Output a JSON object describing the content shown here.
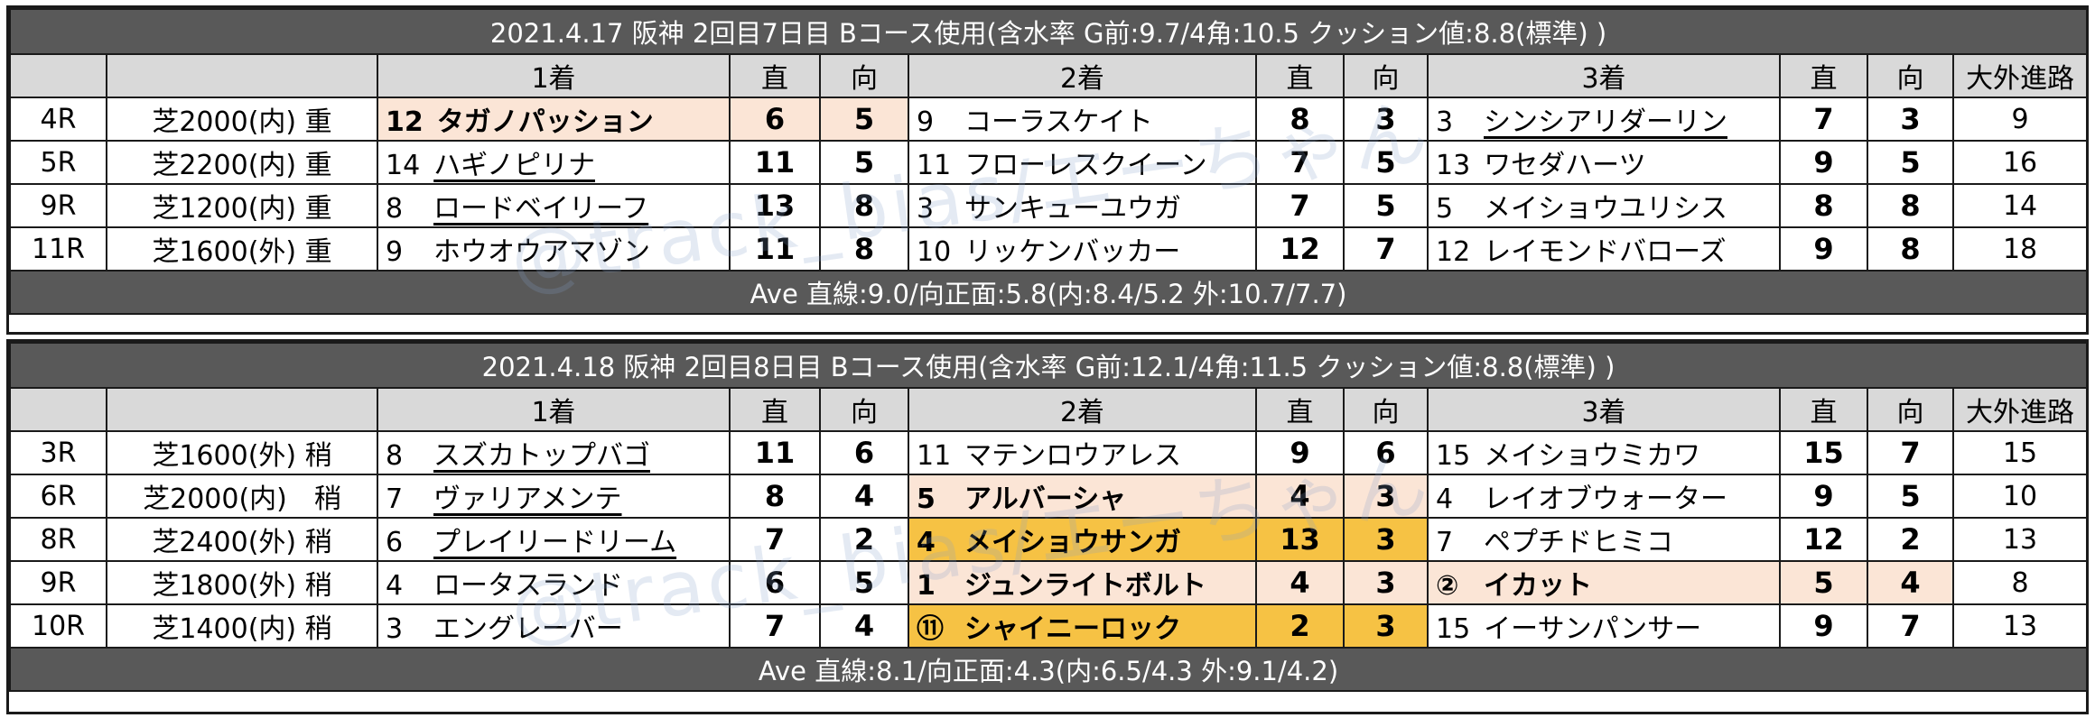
{
  "days": [
    {
      "title": "2021.4.17 阪神 2回目7日目 Bコース使用(含水率 G前:9.7/4角:10.5 クッション値:8.8(標準) )",
      "headers": [
        "",
        "",
        "1着",
        "直",
        "向",
        "2着",
        "直",
        "向",
        "3着",
        "直",
        "向",
        "大外進路"
      ],
      "rows": [
        {
          "race": "4R",
          "course": "芝2000(内) 重",
          "p1": {
            "num": "12",
            "name": "タガノパッション",
            "bold": true,
            "underline": false,
            "bg": "pink"
          },
          "s1": "6",
          "m1": "5",
          "cbg1": "pink",
          "p2": {
            "num": "9",
            "name": "コーラスケイト",
            "bold": false,
            "underline": false,
            "bg": ""
          },
          "s2": "8",
          "m2": "3",
          "cbg2": "",
          "p3": {
            "num": "3",
            "name": "シンシアリダーリン",
            "bold": false,
            "underline": true,
            "bg": ""
          },
          "s3": "7",
          "m3": "3",
          "cbg3": "",
          "outer": "9"
        },
        {
          "race": "5R",
          "course": "芝2200(内) 重",
          "p1": {
            "num": "14",
            "name": "ハギノピリナ",
            "bold": false,
            "underline": true,
            "bg": ""
          },
          "s1": "11",
          "m1": "5",
          "cbg1": "",
          "p2": {
            "num": "11",
            "name": "フローレスクイーン",
            "bold": false,
            "underline": false,
            "bg": ""
          },
          "s2": "7",
          "m2": "5",
          "cbg2": "",
          "p3": {
            "num": "13",
            "name": "ワセダハーツ",
            "bold": false,
            "underline": false,
            "bg": ""
          },
          "s3": "9",
          "m3": "5",
          "cbg3": "",
          "outer": "16"
        },
        {
          "race": "9R",
          "course": "芝1200(内) 重",
          "p1": {
            "num": "8",
            "name": "ロードベイリーフ",
            "bold": false,
            "underline": true,
            "bg": ""
          },
          "s1": "13",
          "m1": "8",
          "cbg1": "",
          "p2": {
            "num": "3",
            "name": "サンキューユウガ",
            "bold": false,
            "underline": false,
            "bg": ""
          },
          "s2": "7",
          "m2": "5",
          "cbg2": "",
          "p3": {
            "num": "5",
            "name": "メイショウユリシス",
            "bold": false,
            "underline": false,
            "bg": ""
          },
          "s3": "8",
          "m3": "8",
          "cbg3": "",
          "outer": "14"
        },
        {
          "race": "11R",
          "course": "芝1600(外) 重",
          "p1": {
            "num": "9",
            "name": "ホウオウアマゾン",
            "bold": false,
            "underline": false,
            "bg": ""
          },
          "s1": "11",
          "m1": "8",
          "cbg1": "",
          "p2": {
            "num": "10",
            "name": "リッケンバッカー",
            "bold": false,
            "underline": false,
            "bg": ""
          },
          "s2": "12",
          "m2": "7",
          "cbg2": "",
          "p3": {
            "num": "12",
            "name": "レイモンドバローズ",
            "bold": false,
            "underline": false,
            "bg": ""
          },
          "s3": "9",
          "m3": "8",
          "cbg3": "",
          "outer": "18"
        }
      ],
      "average": "Ave 直線:9.0/向正面:5.8(内:8.4/5.2 外:10.7/7.7)"
    },
    {
      "title": "2021.4.18 阪神 2回目8日目 Bコース使用(含水率 G前:12.1/4角:11.5 クッション値:8.8(標準) )",
      "headers": [
        "",
        "",
        "1着",
        "直",
        "向",
        "2着",
        "直",
        "向",
        "3着",
        "直",
        "向",
        "大外進路"
      ],
      "rows": [
        {
          "race": "3R",
          "course": "芝1600(外) 稍",
          "p1": {
            "num": "8",
            "name": "スズカトップバゴ",
            "bold": false,
            "underline": true,
            "bg": ""
          },
          "s1": "11",
          "m1": "6",
          "cbg1": "",
          "p2": {
            "num": "11",
            "name": "マテンロウアレス",
            "bold": false,
            "underline": false,
            "bg": ""
          },
          "s2": "9",
          "m2": "6",
          "cbg2": "",
          "p3": {
            "num": "15",
            "name": "メイショウミカワ",
            "bold": false,
            "underline": false,
            "bg": ""
          },
          "s3": "15",
          "m3": "7",
          "cbg3": "",
          "outer": "15"
        },
        {
          "race": "6R",
          "course": "芝2000(内)　稍",
          "p1": {
            "num": "7",
            "name": "ヴァリアメンテ",
            "bold": false,
            "underline": true,
            "bg": ""
          },
          "s1": "8",
          "m1": "4",
          "cbg1": "",
          "p2": {
            "num": "5",
            "name": "アルバーシャ",
            "bold": true,
            "underline": false,
            "bg": "pink"
          },
          "s2": "4",
          "m2": "3",
          "cbg2": "pink",
          "p3": {
            "num": "4",
            "name": "レイオブウォーター",
            "bold": false,
            "underline": false,
            "bg": ""
          },
          "s3": "9",
          "m3": "5",
          "cbg3": "",
          "outer": "10"
        },
        {
          "race": "8R",
          "course": "芝2400(外) 稍",
          "p1": {
            "num": "6",
            "name": "プレイリードリーム",
            "bold": false,
            "underline": true,
            "bg": ""
          },
          "s1": "7",
          "m1": "2",
          "cbg1": "",
          "p2": {
            "num": "4",
            "name": "メイショウサンガ",
            "bold": true,
            "underline": false,
            "bg": "yellow"
          },
          "s2": "13",
          "m2": "3",
          "cbg2": "yellow",
          "p3": {
            "num": "7",
            "name": "ペプチドヒミコ",
            "bold": false,
            "underline": false,
            "bg": ""
          },
          "s3": "12",
          "m3": "2",
          "cbg3": "",
          "outer": "13"
        },
        {
          "race": "9R",
          "course": "芝1800(外) 稍",
          "p1": {
            "num": "4",
            "name": "ロータスランド",
            "bold": false,
            "underline": false,
            "bg": ""
          },
          "s1": "6",
          "m1": "5",
          "cbg1": "",
          "p2": {
            "num": "1",
            "name": "ジュンライトボルト",
            "bold": true,
            "underline": false,
            "bg": "pink"
          },
          "s2": "4",
          "m2": "3",
          "cbg2": "pink",
          "p3": {
            "num": "②",
            "name": "イカット",
            "bold": true,
            "underline": false,
            "bg": "pink"
          },
          "s3": "5",
          "m3": "4",
          "cbg3": "pink",
          "outer": "8"
        },
        {
          "race": "10R",
          "course": "芝1400(内) 稍",
          "p1": {
            "num": "3",
            "name": "エングレーバー",
            "bold": false,
            "underline": false,
            "bg": ""
          },
          "s1": "7",
          "m1": "4",
          "cbg1": "",
          "p2": {
            "num": "⑪",
            "name": "シャイニーロック",
            "bold": true,
            "underline": false,
            "bg": "yellow"
          },
          "s2": "2",
          "m2": "3",
          "cbg2": "yellow",
          "p3": {
            "num": "15",
            "name": "イーサンパンサー",
            "bold": false,
            "underline": false,
            "bg": ""
          },
          "s3": "9",
          "m3": "7",
          "cbg3": "",
          "outer": "13"
        }
      ],
      "average": "Ave 直線:8.1/向正面:4.3(内:6.5/4.3 外:9.1/4.2)"
    }
  ],
  "watermark": "@track_bias/エーちゃん",
  "colors": {
    "banner": "#595959",
    "header": "#d9d9d9",
    "pink": "#fbe5d6",
    "yellow": "#f6c244"
  }
}
